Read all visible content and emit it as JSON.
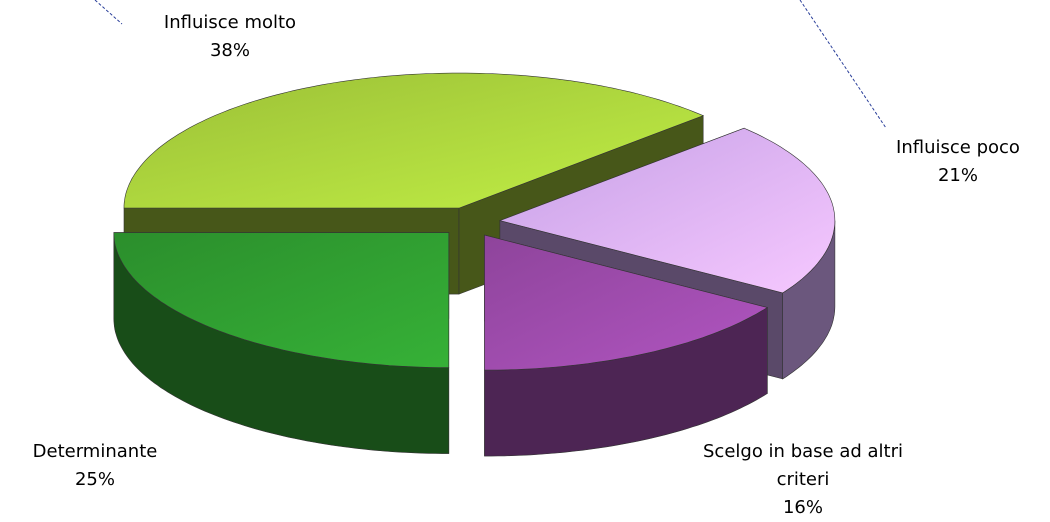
{
  "chart_data": {
    "type": "pie3d",
    "categories": [
      "Influisce molto",
      "Influisce poco",
      "Scelgo in base ad altri criteri",
      "Determinante"
    ],
    "values": [
      38,
      21,
      16,
      25
    ],
    "value_labels": [
      "38%",
      "21%",
      "16%",
      "25%"
    ],
    "colors": [
      "#a8d03c",
      "#d6aefa",
      "#9a4aa8",
      "#2f9a30"
    ]
  }
}
